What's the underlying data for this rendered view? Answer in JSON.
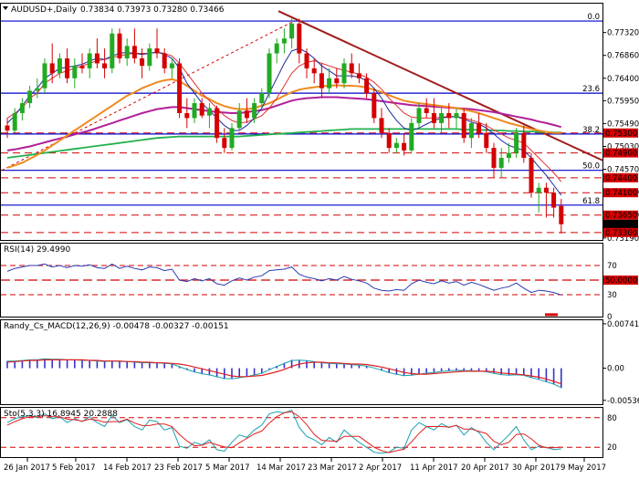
{
  "panels": {
    "price": {
      "title": "AUDUSD+,Daily",
      "ohlc_text": "0.73834 0.73973 0.73280 0.73466",
      "ylim": [
        0.7315,
        0.779
      ],
      "ticks": [
        "0.77320",
        "0.76860",
        "0.76400",
        "0.75950",
        "0.75490",
        "0.75030",
        "0.74570",
        "0.74110",
        "0.73650",
        "0.73190"
      ],
      "fib_labels": [
        "0.0",
        "23.6",
        "38.2",
        "50.0",
        "61.8"
      ],
      "level_badges": [
        {
          "label": "0.75300",
          "value": 0.753,
          "bg": "#d40000"
        },
        {
          "label": "0.74900",
          "value": 0.749,
          "bg": "#d40000"
        },
        {
          "label": "0.74400",
          "value": 0.744,
          "bg": "#d40000"
        },
        {
          "label": "0.74100",
          "value": 0.741,
          "bg": "#d40000"
        },
        {
          "label": "0.73650",
          "value": 0.7365,
          "bg": "#d40000"
        },
        {
          "label": "0.73466",
          "value": 0.73466,
          "bg": "#000000"
        },
        {
          "label": "0.73300",
          "value": 0.733,
          "bg": "#d40000"
        }
      ]
    },
    "rsi": {
      "title": "RSI(14) 29.4990",
      "ticks": [
        "70",
        "50.0000",
        "30",
        "0"
      ],
      "ylim": [
        0,
        100
      ]
    },
    "macd": {
      "title": "Randy_Cs_MACD(12,26,9) -0.00478 -0.00327 -0.00151",
      "ticks": [
        "0.00741",
        "0.00",
        "-0.00536"
      ],
      "ylim": [
        -0.006,
        0.008
      ]
    },
    "sto": {
      "title": "Sto(5,3,3) 16.8945 20.2888",
      "ticks": [
        "80",
        "20"
      ],
      "ylim": [
        0,
        100
      ]
    }
  },
  "x_axis_labels": [
    "26 Jan 2017",
    "5 Feb 2017",
    "14 Feb 2017",
    "23 Feb 2017",
    "5 Mar 2017",
    "14 Mar 2017",
    "23 Mar 2017",
    "2 Apr 2017",
    "11 Apr 2017",
    "20 Apr 2017",
    "30 Apr 2017",
    "9 May 2017"
  ],
  "chart_data": {
    "type": "candlestick",
    "symbol": "AUDUSD",
    "timeframe": "Daily",
    "ohlc": [
      [
        0.7545,
        0.756,
        0.752,
        0.7535
      ],
      [
        0.7535,
        0.758,
        0.753,
        0.757
      ],
      [
        0.757,
        0.76,
        0.7555,
        0.759
      ],
      [
        0.759,
        0.7625,
        0.758,
        0.7615
      ],
      [
        0.7615,
        0.764,
        0.76,
        0.762
      ],
      [
        0.762,
        0.768,
        0.761,
        0.767
      ],
      [
        0.767,
        0.771,
        0.763,
        0.765
      ],
      [
        0.765,
        0.769,
        0.764,
        0.768
      ],
      [
        0.768,
        0.77,
        0.763,
        0.764
      ],
      [
        0.764,
        0.768,
        0.762,
        0.7665
      ],
      [
        0.7665,
        0.769,
        0.765,
        0.766
      ],
      [
        0.766,
        0.77,
        0.764,
        0.769
      ],
      [
        0.769,
        0.772,
        0.766,
        0.767
      ],
      [
        0.767,
        0.77,
        0.764,
        0.766
      ],
      [
        0.766,
        0.774,
        0.765,
        0.773
      ],
      [
        0.773,
        0.774,
        0.767,
        0.768
      ],
      [
        0.768,
        0.772,
        0.7665,
        0.7705
      ],
      [
        0.7705,
        0.774,
        0.767,
        0.768
      ],
      [
        0.768,
        0.77,
        0.764,
        0.7665
      ],
      [
        0.7665,
        0.771,
        0.7655,
        0.77
      ],
      [
        0.77,
        0.774,
        0.768,
        0.769
      ],
      [
        0.769,
        0.77,
        0.765,
        0.766
      ],
      [
        0.766,
        0.768,
        0.764,
        0.767
      ],
      [
        0.767,
        0.768,
        0.756,
        0.757
      ],
      [
        0.757,
        0.76,
        0.754,
        0.756
      ],
      [
        0.756,
        0.76,
        0.755,
        0.759
      ],
      [
        0.759,
        0.76,
        0.756,
        0.7565
      ],
      [
        0.7565,
        0.759,
        0.754,
        0.758
      ],
      [
        0.758,
        0.7585,
        0.751,
        0.752
      ],
      [
        0.752,
        0.754,
        0.749,
        0.75
      ],
      [
        0.75,
        0.755,
        0.7495,
        0.754
      ],
      [
        0.754,
        0.759,
        0.7535,
        0.7575
      ],
      [
        0.7575,
        0.76,
        0.755,
        0.756
      ],
      [
        0.756,
        0.76,
        0.755,
        0.759
      ],
      [
        0.759,
        0.762,
        0.758,
        0.761
      ],
      [
        0.761,
        0.77,
        0.76,
        0.769
      ],
      [
        0.769,
        0.772,
        0.767,
        0.771
      ],
      [
        0.771,
        0.774,
        0.769,
        0.772
      ],
      [
        0.772,
        0.776,
        0.77,
        0.775
      ],
      [
        0.775,
        0.776,
        0.767,
        0.769
      ],
      [
        0.769,
        0.77,
        0.764,
        0.766
      ],
      [
        0.766,
        0.768,
        0.763,
        0.765
      ],
      [
        0.765,
        0.767,
        0.76,
        0.762
      ],
      [
        0.762,
        0.766,
        0.761,
        0.764
      ],
      [
        0.764,
        0.766,
        0.762,
        0.763
      ],
      [
        0.763,
        0.768,
        0.762,
        0.767
      ],
      [
        0.767,
        0.769,
        0.764,
        0.765
      ],
      [
        0.765,
        0.767,
        0.763,
        0.764
      ],
      [
        0.764,
        0.765,
        0.76,
        0.761
      ],
      [
        0.761,
        0.762,
        0.755,
        0.756
      ],
      [
        0.756,
        0.758,
        0.752,
        0.753
      ],
      [
        0.753,
        0.754,
        0.749,
        0.75
      ],
      [
        0.75,
        0.752,
        0.749,
        0.751
      ],
      [
        0.751,
        0.753,
        0.7485,
        0.7495
      ],
      [
        0.7495,
        0.756,
        0.749,
        0.755
      ],
      [
        0.755,
        0.759,
        0.754,
        0.758
      ],
      [
        0.758,
        0.76,
        0.756,
        0.757
      ],
      [
        0.757,
        0.76,
        0.754,
        0.755
      ],
      [
        0.755,
        0.758,
        0.753,
        0.757
      ],
      [
        0.757,
        0.759,
        0.754,
        0.756
      ],
      [
        0.756,
        0.758,
        0.754,
        0.757
      ],
      [
        0.757,
        0.758,
        0.751,
        0.752
      ],
      [
        0.752,
        0.756,
        0.75,
        0.755
      ],
      [
        0.755,
        0.757,
        0.752,
        0.753
      ],
      [
        0.753,
        0.755,
        0.749,
        0.75
      ],
      [
        0.75,
        0.751,
        0.744,
        0.746
      ],
      [
        0.746,
        0.75,
        0.744,
        0.748
      ],
      [
        0.748,
        0.751,
        0.747,
        0.749
      ],
      [
        0.749,
        0.754,
        0.748,
        0.753
      ],
      [
        0.753,
        0.7545,
        0.747,
        0.748
      ],
      [
        0.748,
        0.749,
        0.74,
        0.741
      ],
      [
        0.741,
        0.743,
        0.737,
        0.742
      ],
      [
        0.742,
        0.743,
        0.736,
        0.741
      ],
      [
        0.741,
        0.742,
        0.736,
        0.738
      ],
      [
        0.73834,
        0.73973,
        0.7328,
        0.73466
      ]
    ],
    "ma_red": [
      0.756,
      0.757,
      0.758,
      0.76,
      0.761,
      0.763,
      0.764,
      0.765,
      0.7655,
      0.766,
      0.7665,
      0.767,
      0.7675,
      0.7678,
      0.7682,
      0.7685,
      0.7688,
      0.769,
      0.769,
      0.769,
      0.7692,
      0.769,
      0.7685,
      0.767,
      0.765,
      0.763,
      0.761,
      0.7595,
      0.758,
      0.7565,
      0.7555,
      0.755,
      0.7552,
      0.7558,
      0.7565,
      0.758,
      0.76,
      0.7625,
      0.765,
      0.7665,
      0.7672,
      0.7675,
      0.767,
      0.7665,
      0.766,
      0.7656,
      0.7652,
      0.7648,
      0.7642,
      0.7632,
      0.7618,
      0.76,
      0.7585,
      0.757,
      0.7562,
      0.756,
      0.756,
      0.756,
      0.7562,
      0.7563,
      0.7563,
      0.756,
      0.7556,
      0.7551,
      0.7545,
      0.7536,
      0.7528,
      0.752,
      0.7515,
      0.751,
      0.7495,
      0.748,
      0.7465,
      0.745,
      0.7432
    ],
    "ma_blue": [
      0.755,
      0.7565,
      0.7585,
      0.7605,
      0.762,
      0.764,
      0.765,
      0.766,
      0.7662,
      0.7665,
      0.7668,
      0.7675,
      0.768,
      0.7678,
      0.7685,
      0.769,
      0.7692,
      0.769,
      0.7688,
      0.769,
      0.7693,
      0.7688,
      0.768,
      0.766,
      0.763,
      0.761,
      0.759,
      0.7575,
      0.756,
      0.7545,
      0.7535,
      0.7535,
      0.7545,
      0.756,
      0.758,
      0.761,
      0.764,
      0.767,
      0.7695,
      0.77,
      0.7692,
      0.768,
      0.7665,
      0.7655,
      0.7645,
      0.7645,
      0.7645,
      0.7642,
      0.7635,
      0.762,
      0.76,
      0.7575,
      0.7555,
      0.754,
      0.7535,
      0.754,
      0.7548,
      0.7555,
      0.756,
      0.7562,
      0.7563,
      0.7558,
      0.7552,
      0.7548,
      0.754,
      0.7528,
      0.7515,
      0.7505,
      0.75,
      0.7495,
      0.748,
      0.7462,
      0.7445,
      0.7425,
      0.7405
    ],
    "ma_orange": [
      0.746,
      0.7465,
      0.747,
      0.7478,
      0.7486,
      0.7495,
      0.7505,
      0.7515,
      0.7525,
      0.7535,
      0.7545,
      0.7555,
      0.7565,
      0.7575,
      0.7585,
      0.7595,
      0.7605,
      0.7612,
      0.762,
      0.7626,
      0.7632,
      0.7636,
      0.7638,
      0.7634,
      0.7625,
      0.7615,
      0.7605,
      0.7598,
      0.759,
      0.7584,
      0.758,
      0.7578,
      0.7578,
      0.758,
      0.7585,
      0.759,
      0.7597,
      0.7605,
      0.7612,
      0.7617,
      0.762,
      0.7622,
      0.7624,
      0.7625,
      0.7626,
      0.7625,
      0.7625,
      0.7624,
      0.7621,
      0.7617,
      0.7612,
      0.7606,
      0.76,
      0.7595,
      0.7592,
      0.759,
      0.7588,
      0.7586,
      0.7584,
      0.7582,
      0.758,
      0.7577,
      0.7574,
      0.757,
      0.7565,
      0.756,
      0.7555,
      0.755,
      0.7546,
      0.7542,
      0.7538,
      0.7535,
      0.7532,
      0.753,
      0.753
    ],
    "ma_magenta": [
      0.7495,
      0.7497,
      0.75,
      0.7503,
      0.7507,
      0.7511,
      0.7515,
      0.7519,
      0.7523,
      0.7527,
      0.7531,
      0.7535,
      0.754,
      0.7545,
      0.755,
      0.7555,
      0.756,
      0.7565,
      0.757,
      0.7574,
      0.7578,
      0.758,
      0.7582,
      0.7582,
      0.758,
      0.7578,
      0.7576,
      0.7574,
      0.7572,
      0.7571,
      0.757,
      0.757,
      0.7572,
      0.7574,
      0.7576,
      0.758,
      0.7585,
      0.759,
      0.7595,
      0.7598,
      0.76,
      0.7601,
      0.7602,
      0.7602,
      0.7602,
      0.7601,
      0.76,
      0.7599,
      0.7598,
      0.7596,
      0.7594,
      0.7592,
      0.759,
      0.7588,
      0.7586,
      0.7585,
      0.7584,
      0.7583,
      0.7582,
      0.7581,
      0.758,
      0.7579,
      0.7578,
      0.7576,
      0.7574,
      0.7572,
      0.7569,
      0.7566,
      0.7563,
      0.756,
      0.7557,
      0.7553,
      0.755,
      0.7546,
      0.7542
    ],
    "ma_green": [
      0.748,
      0.7482,
      0.7484,
      0.7486,
      0.7488,
      0.749,
      0.7492,
      0.7494,
      0.7496,
      0.7498,
      0.75,
      0.7502,
      0.7504,
      0.7506,
      0.7508,
      0.751,
      0.7512,
      0.7514,
      0.7516,
      0.7518,
      0.752,
      0.7521,
      0.7522,
      0.7523,
      0.7523,
      0.7523,
      0.7523,
      0.7523,
      0.7523,
      0.7523,
      0.7523,
      0.7523,
      0.7524,
      0.7525,
      0.7526,
      0.7527,
      0.7528,
      0.7529,
      0.753,
      0.7531,
      0.7532,
      0.7533,
      0.7534,
      0.7535,
      0.7536,
      0.7537,
      0.7538,
      0.7538,
      0.7538,
      0.7538,
      0.7538,
      0.7538,
      0.7538,
      0.7538,
      0.7538,
      0.7538,
      0.7538,
      0.7538,
      0.7538,
      0.7538,
      0.7538,
      0.7537,
      0.7537,
      0.7536,
      0.7536,
      0.7535,
      0.7535,
      0.7534,
      0.7534,
      0.7533,
      0.7533,
      0.7532,
      0.7532,
      0.7531,
      0.7531
    ],
    "rsi": [
      62,
      66,
      68,
      70,
      70,
      72,
      68,
      70,
      67,
      70,
      69,
      71,
      67,
      66,
      72,
      66,
      69,
      66,
      64,
      68,
      67,
      63,
      65,
      50,
      48,
      52,
      49,
      52,
      45,
      43,
      49,
      53,
      50,
      54,
      56,
      63,
      64,
      65,
      68,
      58,
      54,
      52,
      49,
      52,
      50,
      55,
      51,
      49,
      46,
      39,
      36,
      35,
      37,
      36,
      45,
      50,
      47,
      45,
      49,
      46,
      48,
      43,
      47,
      44,
      40,
      36,
      39,
      41,
      46,
      39,
      33,
      36,
      35,
      33,
      29.5
    ],
    "macd_hist": [
      0.0012,
      0.0012,
      0.0013,
      0.0014,
      0.0014,
      0.0016,
      0.0015,
      0.0015,
      0.0014,
      0.0014,
      0.0013,
      0.0013,
      0.0012,
      0.0011,
      0.0012,
      0.0011,
      0.0011,
      0.001,
      0.0009,
      0.0009,
      0.0009,
      0.0008,
      0.0007,
      0.0002,
      -0.0003,
      -0.0007,
      -0.001,
      -0.0012,
      -0.0015,
      -0.0018,
      -0.0018,
      -0.0016,
      -0.0014,
      -0.0011,
      -0.0008,
      -0.0002,
      0.0004,
      0.0009,
      0.0014,
      0.0014,
      0.0013,
      0.0011,
      0.0009,
      0.0008,
      0.0007,
      0.0007,
      0.0006,
      0.0005,
      0.0003,
      0.0,
      -0.0004,
      -0.0008,
      -0.0011,
      -0.0013,
      -0.0012,
      -0.001,
      -0.0008,
      -0.0007,
      -0.0005,
      -0.0004,
      -0.0003,
      -0.0004,
      -0.0004,
      -0.0005,
      -0.0006,
      -0.0009,
      -0.0011,
      -0.0012,
      -0.0011,
      -0.0012,
      -0.0016,
      -0.0019,
      -0.0023,
      -0.0027,
      -0.0033
    ],
    "macd_signal": [
      0.001,
      0.0011,
      0.0012,
      0.0013,
      0.0013,
      0.0014,
      0.0014,
      0.0014,
      0.0014,
      0.0014,
      0.0014,
      0.0013,
      0.0013,
      0.0012,
      0.0012,
      0.0012,
      0.0011,
      0.0011,
      0.001,
      0.001,
      0.0009,
      0.0009,
      0.0008,
      0.0007,
      0.0005,
      0.0002,
      -0.0001,
      -0.0004,
      -0.0007,
      -0.001,
      -0.0013,
      -0.0014,
      -0.0014,
      -0.0013,
      -0.0012,
      -0.0009,
      -0.0006,
      -0.0002,
      0.0003,
      0.0007,
      0.0009,
      0.001,
      0.001,
      0.0009,
      0.0009,
      0.0008,
      0.0007,
      0.0007,
      0.0006,
      0.0004,
      0.0002,
      -0.0001,
      -0.0004,
      -0.0007,
      -0.0009,
      -0.001,
      -0.001,
      -0.0009,
      -0.0008,
      -0.0007,
      -0.0006,
      -0.0005,
      -0.0005,
      -0.0005,
      -0.0005,
      -0.0006,
      -0.0008,
      -0.0009,
      -0.001,
      -0.0011,
      -0.0013,
      -0.0015,
      -0.0018,
      -0.0022,
      -0.0026
    ],
    "sto_k": [
      70,
      78,
      82,
      85,
      80,
      88,
      78,
      82,
      70,
      78,
      72,
      82,
      70,
      62,
      85,
      70,
      76,
      62,
      55,
      75,
      72,
      55,
      60,
      22,
      18,
      30,
      25,
      35,
      15,
      12,
      30,
      45,
      40,
      55,
      65,
      88,
      92,
      90,
      95,
      60,
      42,
      35,
      25,
      40,
      30,
      55,
      42,
      30,
      20,
      10,
      8,
      10,
      20,
      18,
      55,
      70,
      62,
      55,
      68,
      60,
      65,
      45,
      60,
      50,
      30,
      15,
      30,
      45,
      62,
      35,
      15,
      22,
      20,
      15,
      16.9
    ],
    "sto_d": [
      65,
      72,
      78,
      82,
      82,
      84,
      82,
      82,
      77,
      76,
      73,
      77,
      75,
      71,
      72,
      72,
      77,
      69,
      64,
      64,
      67,
      67,
      62,
      46,
      33,
      23,
      24,
      30,
      25,
      21,
      19,
      29,
      38,
      47,
      53,
      69,
      82,
      90,
      92,
      82,
      66,
      46,
      34,
      33,
      32,
      42,
      42,
      42,
      31,
      20,
      13,
      9,
      13,
      16,
      31,
      48,
      62,
      62,
      62,
      61,
      64,
      57,
      57,
      52,
      48,
      32,
      25,
      30,
      46,
      47,
      37,
      24,
      19,
      19,
      20.3
    ]
  }
}
